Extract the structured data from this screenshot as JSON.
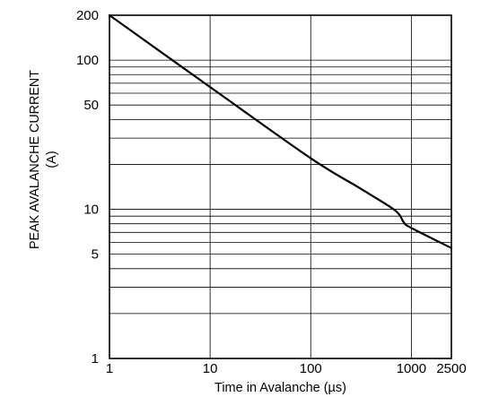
{
  "chart_data": {
    "type": "line",
    "title": "",
    "xlabel": "Time in Avalanche (µs)",
    "ylabel_line1": "PEAK AVALANCHE CURRENT",
    "ylabel_line2": "(A)",
    "x_scale": "log",
    "y_scale": "log",
    "xlim": [
      1,
      2500
    ],
    "ylim": [
      1,
      200
    ],
    "grid": true,
    "legend": "none",
    "x_ticks": [
      {
        "value": 1,
        "label": "1"
      },
      {
        "value": 10,
        "label": "10"
      },
      {
        "value": 100,
        "label": "100"
      },
      {
        "value": 1000,
        "label": "1000"
      },
      {
        "value": 2500,
        "label": "2500"
      }
    ],
    "y_ticks": [
      {
        "value": 1,
        "label": "1"
      },
      {
        "value": 5,
        "label": "5"
      },
      {
        "value": 10,
        "label": "10"
      },
      {
        "value": 50,
        "label": "50"
      },
      {
        "value": 100,
        "label": "100"
      },
      {
        "value": 200,
        "label": "200"
      }
    ],
    "y_gridlines": [
      2,
      3,
      4,
      5,
      6,
      7,
      8,
      9,
      10,
      20,
      30,
      40,
      50,
      60,
      70,
      80,
      90,
      100
    ],
    "x_gridlines": [
      10,
      100,
      1000
    ],
    "series": [
      {
        "color": "#000000",
        "points": [
          {
            "x": 1,
            "y": 200
          },
          {
            "x": 10,
            "y": 66
          },
          {
            "x": 100,
            "y": 22
          },
          {
            "x": 300,
            "y": 14
          },
          {
            "x": 600,
            "y": 10.5
          },
          {
            "x": 750,
            "y": 9.3
          },
          {
            "x": 850,
            "y": 8.1
          },
          {
            "x": 1000,
            "y": 7.5
          },
          {
            "x": 2500,
            "y": 5.5
          }
        ]
      }
    ]
  }
}
